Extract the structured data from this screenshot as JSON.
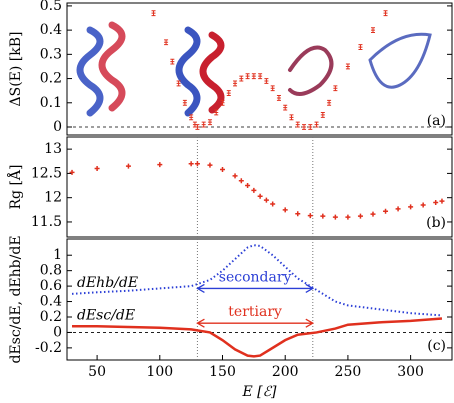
{
  "chart_data": [
    {
      "type": "errorbar",
      "panel_label": "(a)",
      "ylabel": "ΔS(E) [kB]",
      "xlim": [
        26,
        333
      ],
      "ylim": [
        -0.033,
        0.512
      ],
      "yticks": [
        0,
        0.1,
        0.2,
        0.3,
        0.4,
        0.5
      ],
      "hline": 0,
      "color": "#e0301e",
      "x": [
        95,
        105,
        110,
        115,
        120,
        125,
        128,
        130,
        135,
        140,
        145,
        150,
        155,
        160,
        165,
        170,
        175,
        180,
        185,
        190,
        195,
        200,
        205,
        210,
        215,
        220,
        225,
        230,
        235,
        240,
        250,
        260,
        270,
        280
      ],
      "values": [
        0.47,
        0.35,
        0.27,
        0.18,
        0.1,
        0.04,
        0.01,
        0.0,
        0.01,
        0.02,
        0.06,
        0.1,
        0.14,
        0.18,
        0.2,
        0.21,
        0.21,
        0.21,
        0.19,
        0.16,
        0.12,
        0.08,
        0.04,
        0.01,
        0.0,
        0.0,
        0.01,
        0.05,
        0.1,
        0.16,
        0.25,
        0.33,
        0.4,
        0.47
      ],
      "errors": [
        0.01,
        0.01,
        0.01,
        0.01,
        0.01,
        0.01,
        0.01,
        0.01,
        0.01,
        0.01,
        0.01,
        0.01,
        0.01,
        0.01,
        0.01,
        0.01,
        0.01,
        0.01,
        0.01,
        0.01,
        0.01,
        0.01,
        0.01,
        0.01,
        0.01,
        0.01,
        0.01,
        0.01,
        0.01,
        0.01,
        0.01,
        0.01,
        0.01,
        0.01
      ]
    },
    {
      "type": "scatter",
      "panel_label": "(b)",
      "ylabel": "Rg [Å]",
      "xlim": [
        26,
        333
      ],
      "ylim": [
        11.19,
        13.25
      ],
      "yticks": [
        11.5,
        12,
        12.5,
        13
      ],
      "vlines": [
        130,
        222
      ],
      "color": "#e0301e",
      "x": [
        30,
        50,
        75,
        100,
        125,
        130,
        140,
        150,
        160,
        165,
        170,
        175,
        180,
        185,
        190,
        200,
        210,
        220,
        230,
        240,
        250,
        260,
        270,
        280,
        290,
        300,
        310,
        320,
        325
      ],
      "values": [
        12.52,
        12.6,
        12.65,
        12.68,
        12.7,
        12.7,
        12.67,
        12.58,
        12.45,
        12.35,
        12.25,
        12.15,
        12.03,
        11.95,
        11.87,
        11.75,
        11.67,
        11.63,
        11.62,
        11.6,
        11.6,
        11.62,
        11.66,
        11.72,
        11.77,
        11.81,
        11.85,
        11.9,
        11.93
      ]
    },
    {
      "type": "line",
      "panel_label": "(c)",
      "ylabel": "dEsc/dE, dEhb/dE",
      "xlabel": "E [ℰ]",
      "xlim": [
        26,
        333
      ],
      "ylim": [
        -0.357,
        1.21
      ],
      "yticks": [
        -0.2,
        0,
        0.2,
        0.4,
        0.6,
        0.8,
        1
      ],
      "xticks": [
        50,
        100,
        150,
        200,
        250,
        300
      ],
      "hline": 0,
      "vlines": [
        130,
        222
      ],
      "x": [
        30,
        50,
        75,
        100,
        125,
        140,
        150,
        160,
        170,
        175,
        180,
        190,
        200,
        210,
        225,
        240,
        250,
        275,
        300,
        325
      ],
      "series": [
        {
          "name": "dEhb/dE",
          "color": "#2b3fd6",
          "dash": true,
          "values": [
            0.5,
            0.52,
            0.54,
            0.57,
            0.6,
            0.68,
            0.8,
            0.95,
            1.1,
            1.13,
            1.12,
            1.0,
            0.85,
            0.7,
            0.55,
            0.4,
            0.35,
            0.3,
            0.25,
            0.22
          ]
        },
        {
          "name": "dEsc/dE",
          "color": "#e0301e",
          "dash": false,
          "values": [
            0.08,
            0.08,
            0.07,
            0.06,
            0.04,
            0.0,
            -0.1,
            -0.22,
            -0.3,
            -0.31,
            -0.3,
            -0.2,
            -0.1,
            -0.03,
            0.0,
            0.05,
            0.1,
            0.13,
            0.15,
            0.18
          ]
        }
      ],
      "annotations": [
        {
          "text": "secondary",
          "y": 0.57,
          "color": "#2b3fd6"
        },
        {
          "text": "tertiary",
          "y": 0.12,
          "color": "#e0301e"
        }
      ]
    }
  ]
}
